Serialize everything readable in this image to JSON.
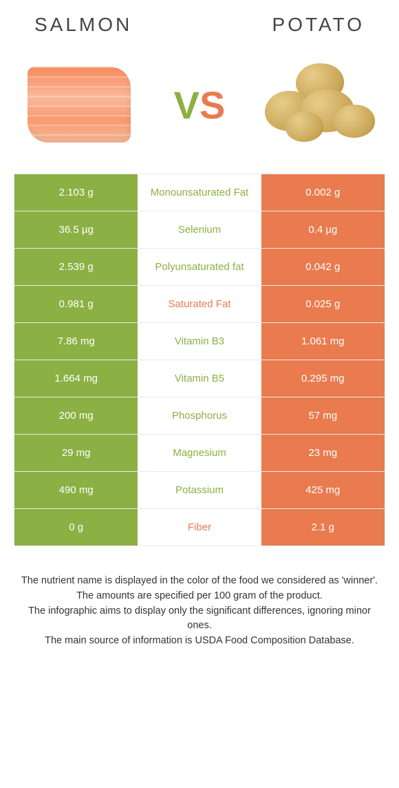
{
  "colors": {
    "left": "#8bb043",
    "right": "#e97b4f",
    "mid_bg": "#ffffff"
  },
  "header": {
    "left_title": "Salmon",
    "right_title": "Potato",
    "vs_v": "V",
    "vs_s": "S"
  },
  "rows": [
    {
      "left": "2.103 g",
      "mid": "Monounsaturated Fat",
      "right": "0.002 g",
      "winner": "left"
    },
    {
      "left": "36.5 µg",
      "mid": "Selenium",
      "right": "0.4 µg",
      "winner": "left"
    },
    {
      "left": "2.539 g",
      "mid": "Polyunsaturated fat",
      "right": "0.042 g",
      "winner": "left"
    },
    {
      "left": "0.981 g",
      "mid": "Saturated Fat",
      "right": "0.025 g",
      "winner": "right"
    },
    {
      "left": "7.86 mg",
      "mid": "Vitamin B3",
      "right": "1.061 mg",
      "winner": "left"
    },
    {
      "left": "1.664 mg",
      "mid": "Vitamin B5",
      "right": "0.295 mg",
      "winner": "left"
    },
    {
      "left": "200 mg",
      "mid": "Phosphorus",
      "right": "57 mg",
      "winner": "left"
    },
    {
      "left": "29 mg",
      "mid": "Magnesium",
      "right": "23 mg",
      "winner": "left"
    },
    {
      "left": "490 mg",
      "mid": "Potassium",
      "right": "425 mg",
      "winner": "left"
    },
    {
      "left": "0 g",
      "mid": "Fiber",
      "right": "2.1 g",
      "winner": "right"
    }
  ],
  "footnotes": [
    "The nutrient name is displayed in the color of the food we considered as 'winner'.",
    "The amounts are specified per 100 gram of the product.",
    "The infographic aims to display only the significant differences, ignoring minor ones.",
    "The main source of information is USDA Food Composition Database."
  ]
}
